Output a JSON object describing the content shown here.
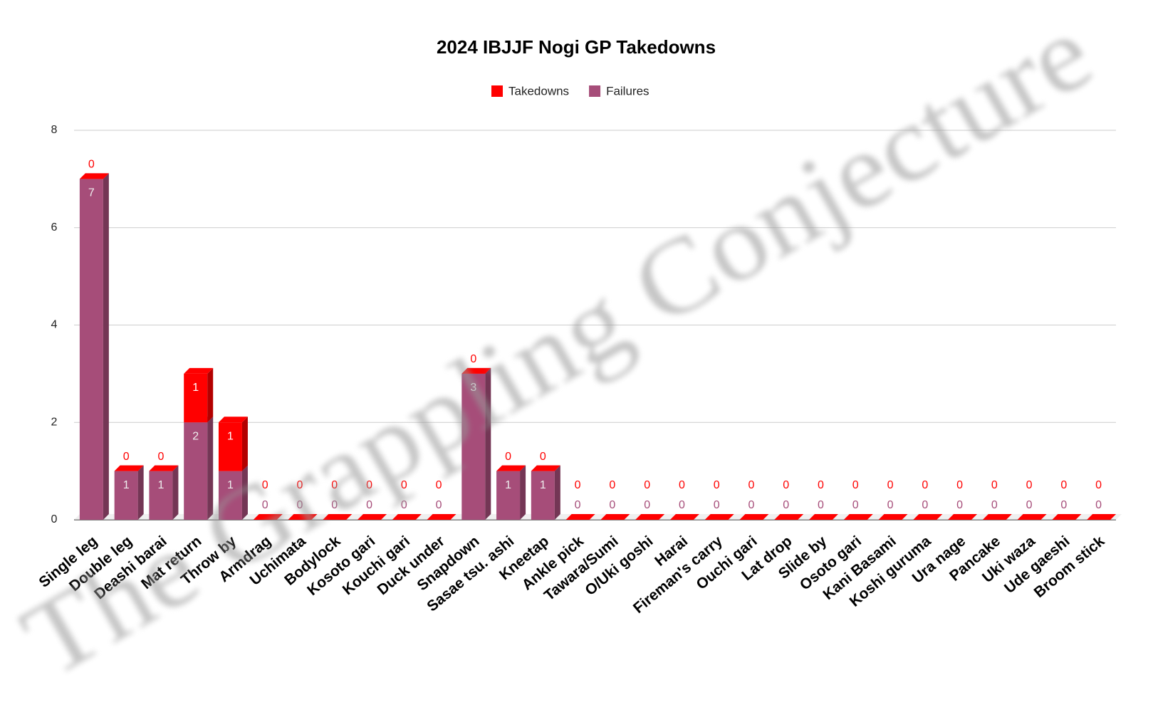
{
  "chart_data": {
    "type": "bar3d_stacked",
    "title": "2024 IBJJF Nogi GP Takedowns",
    "watermark": "The Grappling Conjecture",
    "categories": [
      "Single leg",
      "Double leg",
      "Deashi barai",
      "Mat return",
      "Throw by",
      "Armdrag",
      "Uchimata",
      "Bodylock",
      "Kosoto gari",
      "Kouchi gari",
      "Duck under",
      "Snapdown",
      "Sasae tsu. ashi",
      "Kneetap",
      "Ankle pick",
      "Tawara/Sumi",
      "O/Uki goshi",
      "Harai",
      "Fireman's carry",
      "Ouchi gari",
      "Lat drop",
      "Slide by",
      "Osoto gari",
      "Kani Basami",
      "Koshi guruma",
      "Ura nage",
      "Pancake",
      "Uki waza",
      "Ude gaeshi",
      "Broom stick"
    ],
    "series": [
      {
        "name": "Takedowns",
        "color": "#ff0000",
        "values": [
          0,
          0,
          0,
          1,
          1,
          0,
          0,
          0,
          0,
          0,
          0,
          0,
          0,
          0,
          0,
          0,
          0,
          0,
          0,
          0,
          0,
          0,
          0,
          0,
          0,
          0,
          0,
          0,
          0,
          0
        ]
      },
      {
        "name": "Failures",
        "color": "#a64d79",
        "values": [
          7,
          1,
          1,
          2,
          1,
          0,
          0,
          0,
          0,
          0,
          0,
          3,
          1,
          1,
          0,
          0,
          0,
          0,
          0,
          0,
          0,
          0,
          0,
          0,
          0,
          0,
          0,
          0,
          0,
          0
        ]
      }
    ],
    "stack_order": [
      "Failures",
      "Takedowns"
    ],
    "ylim": [
      0,
      8
    ],
    "yticks": [
      0,
      2,
      4,
      6,
      8
    ],
    "grid": true,
    "legend": "top"
  }
}
